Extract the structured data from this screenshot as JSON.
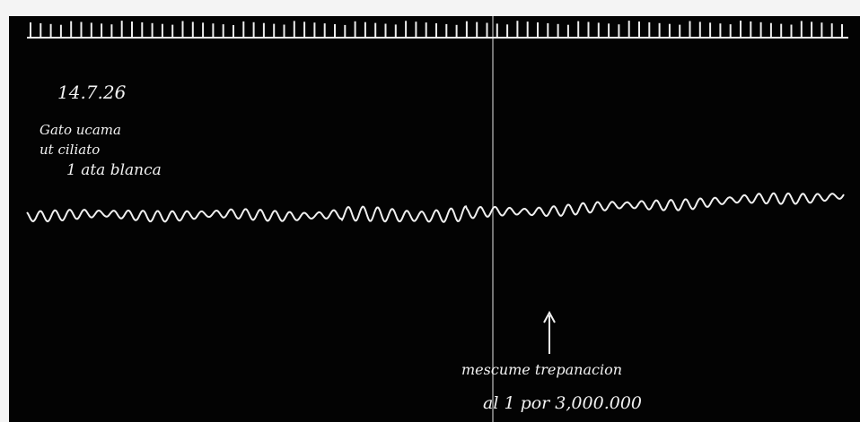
{
  "date": "14.7.26",
  "notes": [
    "Gato ucama",
    "ut ciliato",
    "1 ata blanca"
  ],
  "annotation": [
    "mescume trepanacion",
    "al 1 por 3,000.000"
  ]
}
